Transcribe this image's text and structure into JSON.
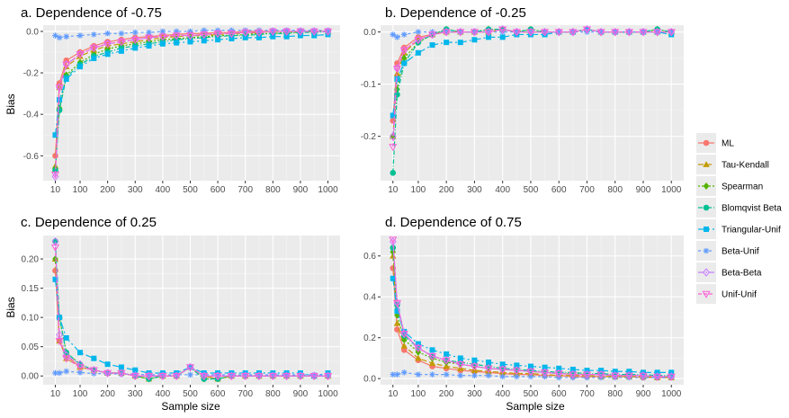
{
  "chart_data": {
    "type": "line",
    "x_axis_title": "Sample size",
    "y_axis_title": "Bias",
    "x_ticks": [
      10,
      100,
      200,
      300,
      400,
      500,
      600,
      700,
      800,
      900,
      1000
    ],
    "x": [
      10,
      25,
      50,
      100,
      150,
      200,
      250,
      300,
      350,
      400,
      450,
      500,
      550,
      600,
      650,
      700,
      750,
      800,
      850,
      900,
      950,
      1000
    ],
    "legend": {
      "position": "right",
      "entries": [
        {
          "name": "ML",
          "color": "#F8766D",
          "shape": "circle",
          "dash": ""
        },
        {
          "name": "Tau-Kendall",
          "color": "#C49A00",
          "shape": "triangle",
          "dash": "6,3"
        },
        {
          "name": "Spearman",
          "color": "#53B400",
          "shape": "diamond",
          "dash": "2,2"
        },
        {
          "name": "Blomqvist Beta",
          "color": "#00C094",
          "shape": "circle",
          "dash": "5,2,1,2"
        },
        {
          "name": "Triangular-Unif",
          "color": "#00B6EB",
          "shape": "square",
          "dash": "8,3,2,3"
        },
        {
          "name": "Beta-Unif",
          "color": "#619CFF",
          "shape": "asterisk",
          "dash": "3,3"
        },
        {
          "name": "Beta-Beta",
          "color": "#C77CFF",
          "shape": "diamond-open",
          "dash": "6,2,2,2"
        },
        {
          "name": "Unif-Unif",
          "color": "#FB61D7",
          "shape": "triangle-down-open",
          "dash": "4,2"
        }
      ]
    },
    "panels": [
      {
        "title": "a. Dependence of -0.75",
        "y_ticks": [
          0.0,
          -0.2,
          -0.4,
          -0.6
        ],
        "y_tick_labels": [
          "0.0",
          "-0.2",
          "-0.4",
          "-0.6"
        ],
        "ylim": [
          -0.72,
          0.03
        ],
        "series": [
          {
            "values": [
              -0.6,
              -0.25,
              -0.14,
              -0.1,
              -0.07,
              -0.05,
              -0.04,
              -0.03,
              -0.025,
              -0.02,
              -0.015,
              -0.01,
              -0.01,
              -0.005,
              -0.005,
              0.0,
              0.0,
              0.0,
              0.0,
              0.0,
              0.0,
              0.0
            ]
          },
          {
            "values": [
              -0.65,
              -0.27,
              -0.17,
              -0.12,
              -0.09,
              -0.07,
              -0.06,
              -0.05,
              -0.04,
              -0.03,
              -0.025,
              -0.02,
              -0.02,
              -0.015,
              -0.01,
              -0.01,
              -0.005,
              0.0,
              0.0,
              0.0,
              0.0,
              0.0
            ]
          },
          {
            "values": [
              -0.66,
              -0.37,
              -0.21,
              -0.15,
              -0.11,
              -0.085,
              -0.07,
              -0.06,
              -0.05,
              -0.04,
              -0.035,
              -0.03,
              -0.025,
              -0.02,
              -0.02,
              -0.015,
              -0.01,
              -0.01,
              -0.005,
              -0.005,
              0.0,
              0.0
            ]
          },
          {
            "values": [
              -0.67,
              -0.38,
              -0.22,
              -0.16,
              -0.12,
              -0.1,
              -0.08,
              -0.07,
              -0.06,
              -0.05,
              -0.04,
              -0.035,
              -0.03,
              -0.025,
              -0.02,
              -0.02,
              -0.015,
              -0.01,
              -0.01,
              -0.005,
              -0.005,
              0.0
            ]
          },
          {
            "values": [
              -0.5,
              -0.33,
              -0.23,
              -0.17,
              -0.13,
              -0.11,
              -0.095,
              -0.08,
              -0.07,
              -0.06,
              -0.055,
              -0.05,
              -0.045,
              -0.04,
              -0.035,
              -0.03,
              -0.03,
              -0.025,
              -0.025,
              -0.02,
              -0.02,
              -0.015
            ]
          },
          {
            "values": [
              -0.02,
              -0.03,
              -0.025,
              -0.02,
              -0.015,
              -0.01,
              -0.01,
              -0.005,
              -0.005,
              0.0,
              0.0,
              0.0,
              0.005,
              0.005,
              0.005,
              0.005,
              0.005,
              0.005,
              0.005,
              0.005,
              0.005,
              0.005
            ]
          },
          {
            "values": [
              -0.7,
              -0.27,
              -0.16,
              -0.11,
              -0.08,
              -0.06,
              -0.05,
              -0.04,
              -0.03,
              -0.025,
              -0.02,
              -0.02,
              -0.015,
              -0.01,
              -0.01,
              -0.005,
              -0.005,
              0.0,
              0.0,
              0.0,
              0.0,
              0.0
            ]
          },
          {
            "values": [
              -0.69,
              -0.27,
              -0.16,
              -0.11,
              -0.08,
              -0.06,
              -0.05,
              -0.04,
              -0.03,
              -0.025,
              -0.02,
              -0.02,
              -0.015,
              -0.01,
              -0.01,
              -0.005,
              -0.005,
              0.0,
              0.0,
              0.0,
              0.0,
              0.0
            ]
          }
        ]
      },
      {
        "title": "b. Dependence of -0.25",
        "y_ticks": [
          0.0,
          -0.1,
          -0.2
        ],
        "y_tick_labels": [
          "0.0",
          "-0.1",
          "-0.2"
        ],
        "ylim": [
          -0.285,
          0.013
        ],
        "series": [
          {
            "values": [
              -0.17,
              -0.06,
              -0.03,
              -0.01,
              -0.005,
              0.0,
              0.0,
              0.0,
              0.0,
              0.005,
              0.0,
              0.0,
              0.0,
              0.0,
              0.0,
              0.005,
              0.0,
              0.0,
              0.0,
              0.0,
              0.0,
              0.0
            ]
          },
          {
            "values": [
              -0.2,
              -0.08,
              -0.04,
              -0.015,
              -0.005,
              0.0,
              0.0,
              0.0,
              0.0,
              0.005,
              0.0,
              0.0,
              0.0,
              0.0,
              0.0,
              0.005,
              0.0,
              0.0,
              0.0,
              0.0,
              0.0,
              0.0
            ]
          },
          {
            "values": [
              -0.2,
              -0.11,
              -0.05,
              -0.02,
              -0.005,
              0.005,
              0.0,
              0.0,
              0.005,
              0.005,
              0.0,
              0.005,
              0.0,
              0.0,
              0.0,
              0.005,
              0.0,
              0.0,
              0.0,
              0.0,
              0.005,
              0.0
            ]
          },
          {
            "values": [
              -0.27,
              -0.12,
              -0.06,
              -0.02,
              -0.005,
              0.005,
              0.0,
              0.0,
              0.005,
              0.005,
              0.0,
              0.005,
              0.0,
              0.0,
              0.0,
              0.005,
              0.0,
              0.0,
              0.0,
              0.0,
              0.005,
              0.0
            ]
          },
          {
            "values": [
              -0.16,
              -0.09,
              -0.06,
              -0.04,
              -0.025,
              -0.02,
              -0.02,
              -0.015,
              -0.01,
              -0.01,
              -0.005,
              -0.005,
              -0.005,
              0.0,
              0.0,
              0.005,
              0.0,
              0.0,
              0.0,
              0.0,
              0.0,
              -0.005
            ]
          },
          {
            "values": [
              -0.005,
              -0.01,
              -0.005,
              0.0,
              0.0,
              0.0,
              0.0,
              0.0,
              0.0,
              0.0,
              0.0,
              0.0,
              0.0,
              0.0,
              0.0,
              0.0,
              0.0,
              0.0,
              0.0,
              0.0,
              0.0,
              0.0
            ]
          },
          {
            "values": [
              -0.2,
              -0.07,
              -0.035,
              -0.015,
              -0.005,
              0.0,
              0.0,
              0.0,
              0.0,
              0.005,
              0.0,
              0.0,
              0.0,
              0.0,
              0.0,
              0.005,
              0.0,
              0.0,
              0.0,
              0.0,
              0.0,
              0.0
            ]
          },
          {
            "values": [
              -0.22,
              -0.07,
              -0.035,
              -0.015,
              -0.005,
              0.0,
              0.0,
              0.0,
              0.0,
              0.005,
              0.0,
              0.0,
              0.0,
              0.0,
              0.0,
              0.005,
              0.0,
              0.0,
              0.0,
              0.0,
              0.0,
              0.0
            ]
          }
        ]
      },
      {
        "title": "c. Dependence of 0.25",
        "y_ticks": [
          0.0,
          0.05,
          0.1,
          0.15,
          0.2
        ],
        "y_tick_labels": [
          "0.00",
          "0.05",
          "0.10",
          "0.15",
          "0.20"
        ],
        "ylim": [
          -0.015,
          0.24
        ],
        "series": [
          {
            "values": [
              0.18,
              0.06,
              0.035,
              0.015,
              0.01,
              0.005,
              0.005,
              0.0,
              0.0,
              0.0,
              0.0,
              0.015,
              0.0,
              -0.005,
              0.0,
              0.0,
              0.0,
              0.0,
              0.0,
              0.0,
              0.0,
              0.0
            ]
          },
          {
            "values": [
              0.2,
              0.06,
              0.03,
              0.015,
              0.01,
              0.005,
              0.005,
              0.0,
              -0.005,
              0.0,
              0.0,
              0.015,
              0.0,
              -0.005,
              0.0,
              0.0,
              0.0,
              0.0,
              0.0,
              0.0,
              0.0,
              0.0
            ]
          },
          {
            "values": [
              0.2,
              0.1,
              0.04,
              0.02,
              0.01,
              0.005,
              0.005,
              0.0,
              -0.005,
              0.0,
              0.0,
              0.015,
              -0.005,
              -0.005,
              0.0,
              0.0,
              0.0,
              0.0,
              0.0,
              0.0,
              0.0,
              0.0
            ]
          },
          {
            "values": [
              0.23,
              0.1,
              0.04,
              0.02,
              0.01,
              0.005,
              0.005,
              0.0,
              -0.005,
              0.0,
              0.0,
              0.015,
              -0.005,
              -0.005,
              0.0,
              0.0,
              0.0,
              0.0,
              0.0,
              0.0,
              0.0,
              0.0
            ]
          },
          {
            "values": [
              0.165,
              0.1,
              0.065,
              0.04,
              0.03,
              0.02,
              0.015,
              0.01,
              0.005,
              0.005,
              0.005,
              0.015,
              0.005,
              0.005,
              0.005,
              0.005,
              0.005,
              0.005,
              0.005,
              0.005,
              0.0,
              0.005
            ]
          },
          {
            "values": [
              0.005,
              0.005,
              0.008,
              0.006,
              0.004,
              0.004,
              0.003,
              0.003,
              0.002,
              0.002,
              0.002,
              0.002,
              0.002,
              0.002,
              0.002,
              0.002,
              0.002,
              0.002,
              0.002,
              0.002,
              0.002,
              0.002
            ]
          },
          {
            "values": [
              0.23,
              0.07,
              0.035,
              0.02,
              0.01,
              0.005,
              0.005,
              0.0,
              0.0,
              0.0,
              0.0,
              0.015,
              0.0,
              0.0,
              0.0,
              0.0,
              0.0,
              0.0,
              0.0,
              0.0,
              0.0,
              0.0
            ]
          },
          {
            "values": [
              0.22,
              0.06,
              0.03,
              0.015,
              0.01,
              0.005,
              0.005,
              0.0,
              0.0,
              0.0,
              0.0,
              0.015,
              0.0,
              0.0,
              0.0,
              0.0,
              0.0,
              0.0,
              0.0,
              0.0,
              0.0,
              0.0
            ]
          }
        ]
      },
      {
        "title": "d. Dependence of 0.75",
        "y_ticks": [
          0.0,
          0.2,
          0.4,
          0.6
        ],
        "y_tick_labels": [
          "0.0",
          "0.2",
          "0.4",
          "0.6"
        ],
        "ylim": [
          -0.03,
          0.7
        ],
        "series": [
          {
            "values": [
              0.54,
              0.24,
              0.14,
              0.09,
              0.06,
              0.05,
              0.04,
              0.035,
              0.03,
              0.025,
              0.02,
              0.02,
              0.015,
              0.015,
              0.01,
              0.01,
              0.01,
              0.01,
              0.01,
              0.005,
              0.005,
              0.005
            ]
          },
          {
            "values": [
              0.6,
              0.27,
              0.16,
              0.1,
              0.075,
              0.06,
              0.05,
              0.04,
              0.035,
              0.03,
              0.025,
              0.025,
              0.02,
              0.015,
              0.015,
              0.015,
              0.01,
              0.01,
              0.01,
              0.01,
              0.005,
              0.005
            ]
          },
          {
            "values": [
              0.62,
              0.31,
              0.19,
              0.13,
              0.1,
              0.08,
              0.07,
              0.06,
              0.05,
              0.045,
              0.04,
              0.035,
              0.03,
              0.025,
              0.025,
              0.02,
              0.02,
              0.015,
              0.015,
              0.015,
              0.01,
              0.01
            ]
          },
          {
            "values": [
              0.64,
              0.36,
              0.21,
              0.15,
              0.11,
              0.09,
              0.08,
              0.07,
              0.06,
              0.05,
              0.045,
              0.04,
              0.035,
              0.03,
              0.03,
              0.025,
              0.025,
              0.02,
              0.02,
              0.02,
              0.015,
              0.015
            ]
          },
          {
            "values": [
              0.49,
              0.33,
              0.23,
              0.17,
              0.14,
              0.12,
              0.1,
              0.09,
              0.08,
              0.07,
              0.065,
              0.06,
              0.055,
              0.05,
              0.045,
              0.04,
              0.04,
              0.035,
              0.035,
              0.03,
              0.03,
              0.03
            ]
          },
          {
            "values": [
              0.02,
              0.02,
              0.03,
              0.02,
              0.02,
              0.02,
              0.015,
              0.015,
              0.015,
              0.01,
              0.01,
              0.01,
              0.01,
              0.005,
              0.005,
              0.005,
              0.005,
              0.005,
              0.005,
              0.005,
              0.005,
              0.005
            ]
          },
          {
            "values": [
              0.67,
              0.37,
              0.22,
              0.15,
              0.11,
              0.09,
              0.07,
              0.06,
              0.05,
              0.045,
              0.04,
              0.035,
              0.03,
              0.025,
              0.02,
              0.02,
              0.02,
              0.015,
              0.015,
              0.015,
              0.01,
              0.01
            ]
          },
          {
            "values": [
              0.68,
              0.37,
              0.22,
              0.15,
              0.11,
              0.09,
              0.07,
              0.06,
              0.05,
              0.045,
              0.04,
              0.035,
              0.03,
              0.025,
              0.02,
              0.02,
              0.02,
              0.015,
              0.015,
              0.015,
              0.01,
              0.01
            ]
          }
        ]
      }
    ]
  }
}
